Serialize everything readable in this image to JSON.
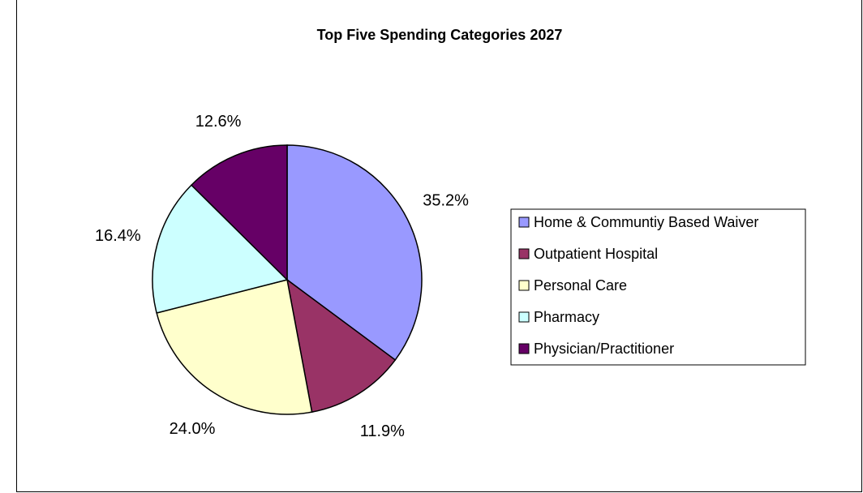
{
  "chart_data": {
    "type": "pie",
    "title": "Top Five Spending Categories 2027",
    "categories": [
      "Home & Communtiy Based Waiver",
      "Outpatient Hospital",
      "Personal Care",
      "Pharmacy",
      "Physician/Practitioner"
    ],
    "values": [
      35.2,
      11.9,
      24.0,
      16.4,
      12.6
    ],
    "labels": [
      "35.2%",
      "11.9%",
      "24.0%",
      "16.4%",
      "12.6%"
    ],
    "colors": [
      "#9999ff",
      "#993366",
      "#ffffcc",
      "#ccffff",
      "#660066"
    ],
    "legend_position": "right",
    "start_angle": "12 o'clock",
    "direction": "clockwise"
  }
}
